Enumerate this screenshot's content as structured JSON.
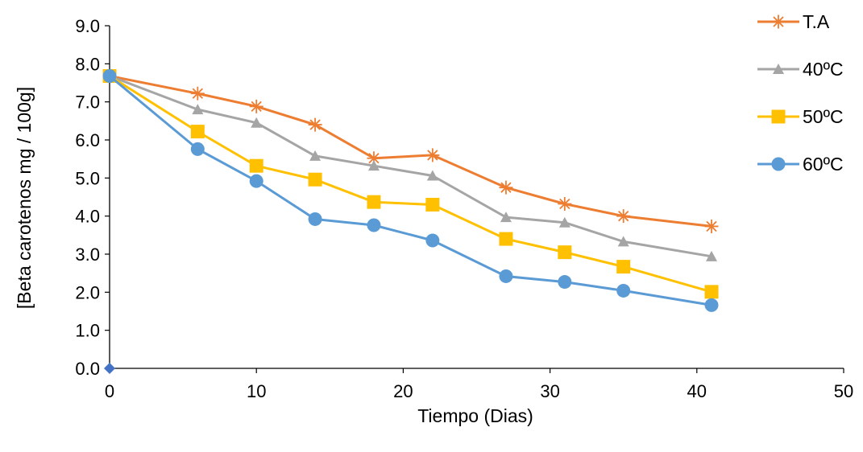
{
  "chart_data": {
    "type": "line",
    "xlabel": "Tiempo (Dias)",
    "ylabel": "[Beta carotenos mg / 100g]",
    "xlim": [
      0,
      50
    ],
    "ylim": [
      0,
      9
    ],
    "x_ticks": [
      "0",
      "10",
      "20",
      "30",
      "40",
      "50"
    ],
    "y_ticks": [
      "0.0",
      "1.0",
      "2.0",
      "3.0",
      "4.0",
      "5.0",
      "6.0",
      "7.0",
      "8.0",
      "9.0"
    ],
    "grid": false,
    "legend_position": "right",
    "x": [
      0,
      6,
      10,
      14,
      18,
      22,
      27,
      31,
      35,
      41
    ],
    "series": [
      {
        "name": "T.A",
        "color": "#ED7D31",
        "marker": "star",
        "values": [
          7.68,
          7.22,
          6.88,
          6.4,
          5.52,
          5.6,
          4.75,
          4.32,
          4.0,
          3.73
        ]
      },
      {
        "name": "40ºC",
        "color": "#A5A5A5",
        "marker": "triangle",
        "values": [
          7.68,
          6.8,
          6.45,
          5.58,
          5.32,
          5.06,
          3.97,
          3.83,
          3.33,
          2.94
        ]
      },
      {
        "name": "50ºC",
        "color": "#FFC000",
        "marker": "square",
        "values": [
          7.68,
          6.22,
          5.32,
          4.96,
          4.37,
          4.3,
          3.4,
          3.05,
          2.67,
          2.01
        ]
      },
      {
        "name": "60ºC",
        "color": "#5B9BD5",
        "marker": "circle",
        "values": [
          7.68,
          5.76,
          4.92,
          3.92,
          3.76,
          3.36,
          2.42,
          2.27,
          2.04,
          1.66
        ]
      }
    ],
    "origin_point": {
      "x": 0,
      "y": 0,
      "color": "#4472C4",
      "marker": "diamond"
    }
  }
}
